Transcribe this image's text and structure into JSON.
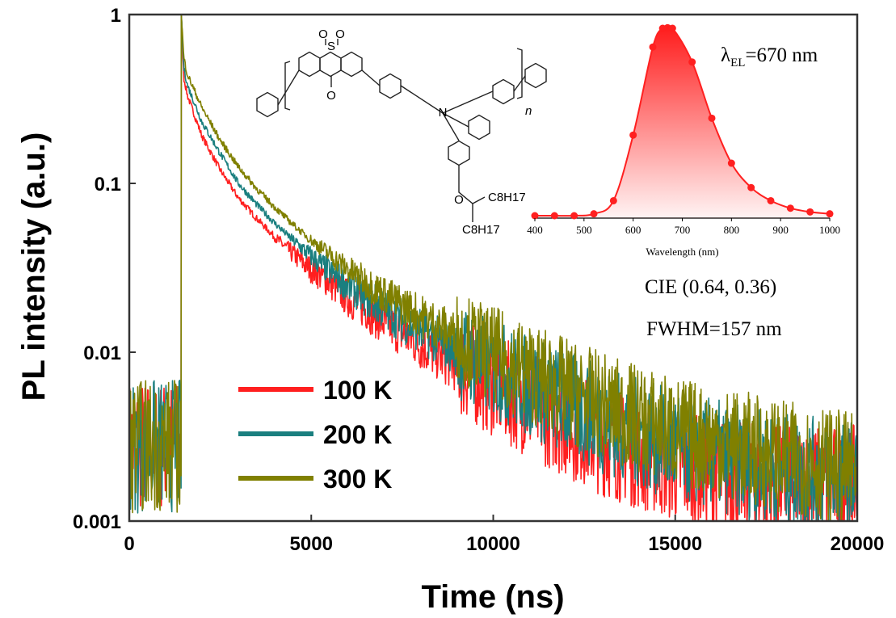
{
  "chart_data": {
    "type": "line",
    "xlabel": "Time (ns)",
    "ylabel": "PL intensity (a.u.)",
    "xlim": [
      0,
      20000
    ],
    "ylim": [
      0.001,
      1
    ],
    "yscale": "log",
    "xticks": [
      0,
      5000,
      10000,
      15000,
      20000
    ],
    "xtick_labels": [
      "0",
      "5000",
      "10000",
      "15000",
      "20000"
    ],
    "yticks": [
      0.001,
      0.01,
      0.1,
      1
    ],
    "ytick_labels": [
      "0.001",
      "0.01",
      "0.1",
      "1"
    ],
    "legend_position": "lower-left",
    "series": [
      {
        "name": "100 K",
        "color": "#ff1f1f",
        "x": [
          1430,
          1500,
          1600,
          2000,
          2500,
          3000,
          3500,
          4000,
          4500,
          5000,
          5500,
          6000,
          6500,
          7000,
          7500,
          8000,
          8500,
          9000,
          9500,
          10000,
          11000,
          12000,
          13000,
          14000,
          15000,
          16000,
          17000,
          18000,
          19000,
          20000
        ],
        "y": [
          1.0,
          0.42,
          0.33,
          0.19,
          0.12,
          0.082,
          0.062,
          0.048,
          0.038,
          0.031,
          0.026,
          0.021,
          0.018,
          0.015,
          0.013,
          0.011,
          0.0096,
          0.0083,
          0.0073,
          0.0064,
          0.0049,
          0.0038,
          0.003,
          0.0025,
          0.0021,
          0.0019,
          0.0018,
          0.0017,
          0.0017,
          0.0017
        ]
      },
      {
        "name": "200 K",
        "color": "#1a7f7f",
        "x": [
          1430,
          1500,
          1600,
          2000,
          2500,
          3000,
          3500,
          4000,
          4500,
          5000,
          5500,
          6000,
          6500,
          7000,
          7500,
          8000,
          8500,
          9000,
          9500,
          10000,
          11000,
          12000,
          13000,
          14000,
          15000,
          16000,
          17000,
          18000,
          19000,
          20000
        ],
        "y": [
          1.0,
          0.48,
          0.38,
          0.23,
          0.15,
          0.1,
          0.075,
          0.058,
          0.046,
          0.037,
          0.03,
          0.025,
          0.021,
          0.018,
          0.0155,
          0.0135,
          0.0117,
          0.0102,
          0.009,
          0.008,
          0.0063,
          0.005,
          0.004,
          0.0033,
          0.0028,
          0.0025,
          0.0022,
          0.002,
          0.0019,
          0.0018
        ]
      },
      {
        "name": "300 K",
        "color": "#808000",
        "x": [
          1430,
          1500,
          1600,
          2000,
          2500,
          3000,
          3500,
          4000,
          4500,
          5000,
          5500,
          6000,
          6500,
          7000,
          7500,
          8000,
          8500,
          9000,
          9500,
          10000,
          11000,
          12000,
          13000,
          14000,
          15000,
          16000,
          17000,
          18000,
          19000,
          20000
        ],
        "y": [
          1.0,
          0.55,
          0.44,
          0.28,
          0.18,
          0.125,
          0.093,
          0.072,
          0.057,
          0.046,
          0.038,
          0.031,
          0.026,
          0.022,
          0.019,
          0.0165,
          0.0143,
          0.0125,
          0.011,
          0.0097,
          0.0076,
          0.006,
          0.0048,
          0.004,
          0.0034,
          0.003,
          0.0027,
          0.0024,
          0.0022,
          0.002
        ]
      }
    ],
    "inset": {
      "type": "area",
      "xlabel": "Wavelength (nm)",
      "xlim": [
        400,
        1000
      ],
      "xticks": [
        400,
        500,
        600,
        700,
        800,
        900,
        1000
      ],
      "xtick_labels": [
        "400",
        "500",
        "600",
        "700",
        "800",
        "900",
        "1000"
      ],
      "color": "#ff2020",
      "x": [
        400,
        440,
        480,
        520,
        560,
        600,
        640,
        660,
        680,
        720,
        760,
        800,
        840,
        880,
        920,
        960,
        1000
      ],
      "y": [
        0.0,
        0.0,
        0.0,
        0.01,
        0.08,
        0.43,
        0.9,
        1.0,
        1.0,
        0.82,
        0.52,
        0.28,
        0.15,
        0.08,
        0.04,
        0.02,
        0.01
      ]
    },
    "annotations": {
      "lambda_symbol": "λ",
      "lambda_subscript": "EL",
      "lambda_value": "=670 nm",
      "cie": "CIE (0.64, 0.36)",
      "fwhm": "FWHM=157 nm"
    },
    "structure_labels": {
      "sulfonyl": "S",
      "oxygen_a": "O",
      "oxygen_b": "O",
      "carbonyl_oxygen": "O",
      "nitrogen": "N",
      "ether_oxygen": "O",
      "chain_1": "C8H17",
      "chain_2": "C8H17",
      "repeat": "n"
    }
  }
}
